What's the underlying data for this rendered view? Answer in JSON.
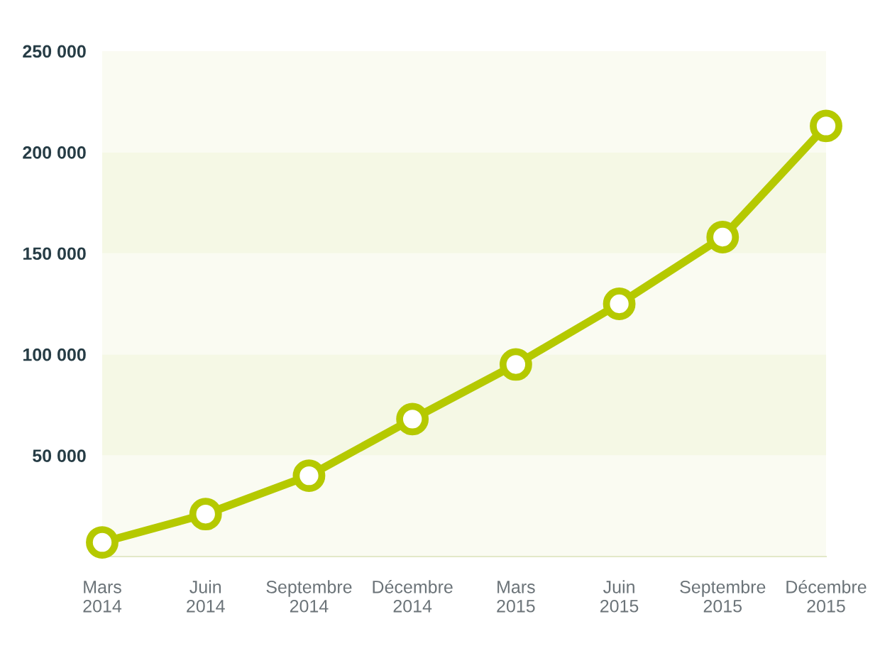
{
  "chart_data": {
    "type": "line",
    "categories": [
      "Mars\n2014",
      "Juin\n2014",
      "Septembre\n2014",
      "Décembre\n2014",
      "Mars\n2015",
      "Juin\n2015",
      "Septembre\n2015",
      "Décembre\n2015"
    ],
    "series": [
      {
        "color": "#b5c900",
        "values": [
          7000,
          21000,
          40000,
          68000,
          95000,
          125000,
          158000,
          213000
        ]
      }
    ],
    "ylim": [
      0,
      250000
    ],
    "yticks": [
      {
        "value": 50000,
        "label": "50 000"
      },
      {
        "value": 100000,
        "label": "100 000"
      },
      {
        "value": 150000,
        "label": "150 000"
      },
      {
        "value": 200000,
        "label": "200 000"
      },
      {
        "value": 250000,
        "label": "250 000"
      }
    ],
    "bands": [
      {
        "axis": "y",
        "from": 0,
        "to": 50000,
        "color": "#fafbf2"
      },
      {
        "axis": "y",
        "from": 50000,
        "to": 100000,
        "color": "#f5f8e5"
      },
      {
        "axis": "y",
        "from": 100000,
        "to": 150000,
        "color": "#fafbf2"
      },
      {
        "axis": "y",
        "from": 150000,
        "to": 200000,
        "color": "#f5f8e5"
      },
      {
        "axis": "y",
        "from": 200000,
        "to": 250000,
        "color": "#fafbf2"
      }
    ],
    "marker": "circle",
    "line_style": "solid",
    "grid": false
  }
}
